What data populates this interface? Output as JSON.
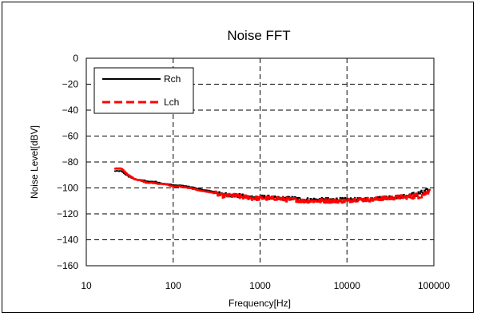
{
  "chart_data": {
    "type": "line",
    "title": "Noise FFT",
    "xlabel": "Frequency[Hz]",
    "ylabel": "Noise Level[dBV]",
    "xscale": "log",
    "xlim": [
      10,
      100000
    ],
    "ylim": [
      -160,
      0
    ],
    "xticks": [
      10,
      100,
      1000,
      10000,
      100000
    ],
    "xtick_labels": [
      "10",
      "100",
      "1000",
      "10000",
      "100000"
    ],
    "yticks": [
      0,
      -20,
      -40,
      -60,
      -80,
      -100,
      -120,
      -140,
      -160
    ],
    "ytick_labels": [
      "0",
      "−20",
      "−40",
      "−60",
      "−80",
      "−100",
      "−120",
      "−140",
      "−160"
    ],
    "grid": "dashed",
    "legend_position": "top-left",
    "series": [
      {
        "name": "Rch",
        "color": "#000000",
        "style": "solid",
        "x": [
          21,
          25,
          30,
          35,
          40,
          45,
          50,
          60,
          70,
          80,
          90,
          100,
          120,
          150,
          180,
          200,
          250,
          300,
          350,
          400,
          500,
          600,
          700,
          800,
          1000,
          1200,
          1500,
          2000,
          2500,
          3000,
          4000,
          5000,
          6000,
          7000,
          8000,
          10000,
          12000,
          15000,
          20000,
          25000,
          30000,
          40000,
          50000,
          60000,
          70000,
          80000,
          90000
        ],
        "y": [
          -87,
          -87,
          -91,
          -93,
          -94,
          -94,
          -95,
          -95,
          -96,
          -97,
          -97,
          -98,
          -98,
          -99,
          -100,
          -101,
          -102,
          -103,
          -105,
          -105,
          -106,
          -106,
          -107,
          -107,
          -107,
          -107,
          -108,
          -108,
          -108,
          -109,
          -109,
          -109,
          -109,
          -109,
          -109,
          -109,
          -109,
          -109,
          -108,
          -108,
          -107,
          -107,
          -106,
          -105,
          -104,
          -103,
          -102
        ]
      },
      {
        "name": "Lch",
        "color": "#ff0000",
        "style": "dashed",
        "x": [
          21,
          25,
          30,
          35,
          40,
          45,
          50,
          60,
          70,
          80,
          90,
          100,
          120,
          150,
          180,
          200,
          250,
          300,
          350,
          400,
          500,
          600,
          700,
          800,
          1000,
          1200,
          1500,
          2000,
          2500,
          3000,
          4000,
          5000,
          6000,
          7000,
          8000,
          10000,
          12000,
          15000,
          20000,
          25000,
          30000,
          40000,
          50000,
          60000,
          70000,
          80000,
          90000
        ],
        "y": [
          -85,
          -85,
          -90,
          -93,
          -94,
          -95,
          -96,
          -96,
          -97,
          -97,
          -98,
          -99,
          -99,
          -100,
          -101,
          -102,
          -103,
          -104,
          -106,
          -106,
          -106,
          -107,
          -107,
          -108,
          -108,
          -108,
          -108,
          -109,
          -109,
          -110,
          -110,
          -110,
          -110,
          -110,
          -110,
          -110,
          -109,
          -109,
          -109,
          -108,
          -108,
          -107,
          -107,
          -106,
          -106,
          -104,
          -101
        ]
      }
    ]
  }
}
